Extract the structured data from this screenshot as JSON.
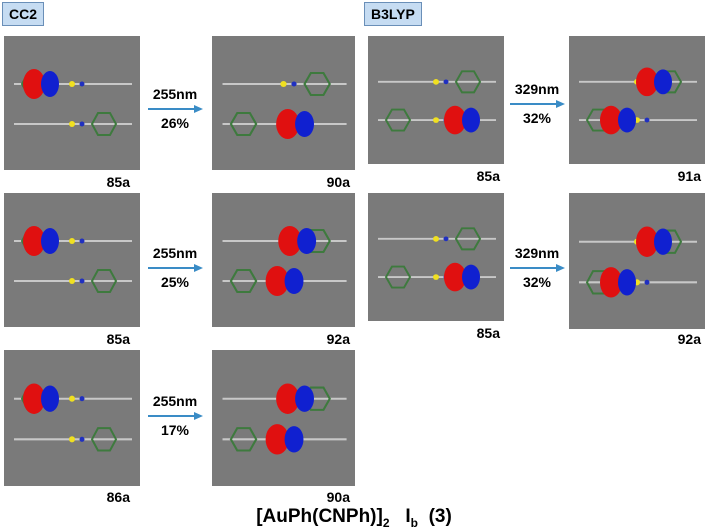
{
  "methods": [
    "CC2",
    "B3LYP"
  ],
  "transitions": [
    {
      "wavelength": "255nm",
      "percent": "26%",
      "from": "85a",
      "to": "90a"
    },
    {
      "wavelength": "255nm",
      "percent": "25%",
      "from": "85a",
      "to": "92a"
    },
    {
      "wavelength": "255nm",
      "percent": "17%",
      "from": "86a",
      "to": "90a"
    },
    {
      "wavelength": "329nm",
      "percent": "32%",
      "from": "85a",
      "to": "91a"
    },
    {
      "wavelength": "329nm",
      "percent": "32%",
      "from": "85a",
      "to": "92a"
    }
  ],
  "title": {
    "main": "[AuPh(CNPh)]",
    "sub1": "2",
    "label": "I",
    "sub2": "b",
    "suffix": "(3)"
  },
  "colors": {
    "panel_bg": "#7a7a7a",
    "orbital_positive": "#e01010",
    "orbital_negative": "#1020d0",
    "arrow": "#3a8cc6",
    "method_box": "#c6dcf2"
  }
}
